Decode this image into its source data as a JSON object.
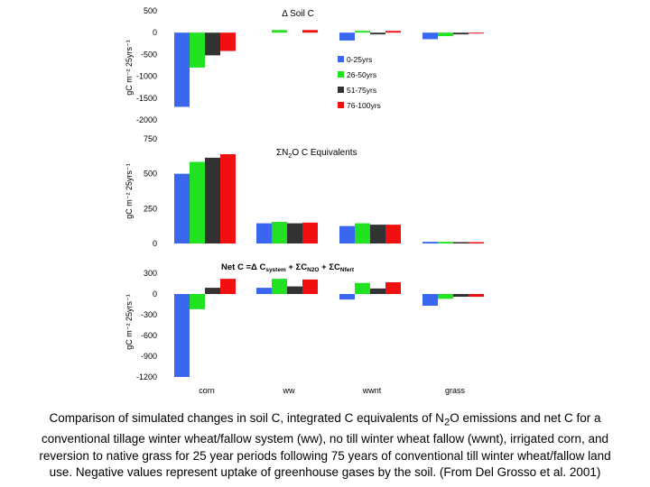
{
  "chart_data": [
    {
      "type": "bar",
      "title": "Δ Soil C",
      "ylabel": "gC m⁻² 25yrs⁻¹",
      "categories": [
        "corn",
        "ww",
        "wwnt",
        "grass"
      ],
      "ylim": [
        -2000,
        500
      ],
      "yticks": [
        "500",
        "0",
        "-500",
        "-1000",
        "-1500",
        "-2000"
      ],
      "series": [
        {
          "name": "0-25yrs",
          "color": "#3a66f0",
          "values": [
            -1700,
            0,
            -180,
            -150
          ]
        },
        {
          "name": "26-50yrs",
          "color": "#21e221",
          "values": [
            -800,
            60,
            40,
            -80
          ]
        },
        {
          "name": "51-75yrs",
          "color": "#333333",
          "values": [
            -520,
            0,
            -40,
            -40
          ]
        },
        {
          "name": "76-100yrs",
          "color": "#f01010",
          "values": [
            -420,
            60,
            40,
            -20
          ]
        }
      ],
      "legend": [
        "0-25yrs",
        "26-50yrs",
        "51-75yrs",
        "76-100yrs"
      ]
    },
    {
      "type": "bar",
      "title_prefix": "ΣN",
      "title_sub": "2",
      "title_suffix": "O C Equivalents",
      "ylabel": "gC m⁻² 25yrs⁻¹",
      "categories": [
        "corn",
        "ww",
        "wwnt",
        "grass"
      ],
      "ylim": [
        0,
        750
      ],
      "yticks": [
        "750",
        "500",
        "250",
        "0"
      ],
      "series": [
        {
          "name": "0-25yrs",
          "color": "#3a66f0",
          "values": [
            500,
            145,
            125,
            12
          ]
        },
        {
          "name": "26-50yrs",
          "color": "#21e221",
          "values": [
            585,
            155,
            145,
            12
          ]
        },
        {
          "name": "51-75yrs",
          "color": "#333333",
          "values": [
            615,
            145,
            135,
            10
          ]
        },
        {
          "name": "76-100yrs",
          "color": "#f01010",
          "values": [
            640,
            150,
            135,
            10
          ]
        }
      ]
    },
    {
      "type": "bar",
      "title": "Net C =Δ C",
      "title_sub1": "system",
      "title_mid1": " + ΣC",
      "title_sub2": "N2O",
      "title_mid2": " + ΣC",
      "title_sub3": "Nfert",
      "ylabel": "gC m⁻² 25yrs⁻¹",
      "categories": [
        "corn",
        "ww",
        "wwnt",
        "grass"
      ],
      "ylim": [
        -1200,
        300
      ],
      "yticks": [
        "300",
        "0",
        "-300",
        "-600",
        "-900",
        "-1200"
      ],
      "series": [
        {
          "name": "0-25yrs",
          "color": "#3a66f0",
          "values": [
            -1200,
            90,
            -80,
            -170
          ]
        },
        {
          "name": "26-50yrs",
          "color": "#21e221",
          "values": [
            -220,
            220,
            160,
            -70
          ]
        },
        {
          "name": "51-75yrs",
          "color": "#333333",
          "values": [
            90,
            110,
            80,
            -40
          ]
        },
        {
          "name": "76-100yrs",
          "color": "#f01010",
          "values": [
            220,
            210,
            170,
            -40
          ]
        }
      ]
    }
  ],
  "caption": {
    "part1": "Comparison of  simulated changes in soil C,  integrated C equivalents of N",
    "sub": "2",
    "part2": "O emissions and net C for a conventional tillage winter wheat/fallow system (ww), no till winter wheat fallow (wwnt), irrigated corn, and reversion to native grass for 25 year periods following 75 years of conventional till winter wheat/fallow land use. Negative values represent uptake of greenhouse gases by the soil. (From Del Grosso et al. 2001)"
  }
}
